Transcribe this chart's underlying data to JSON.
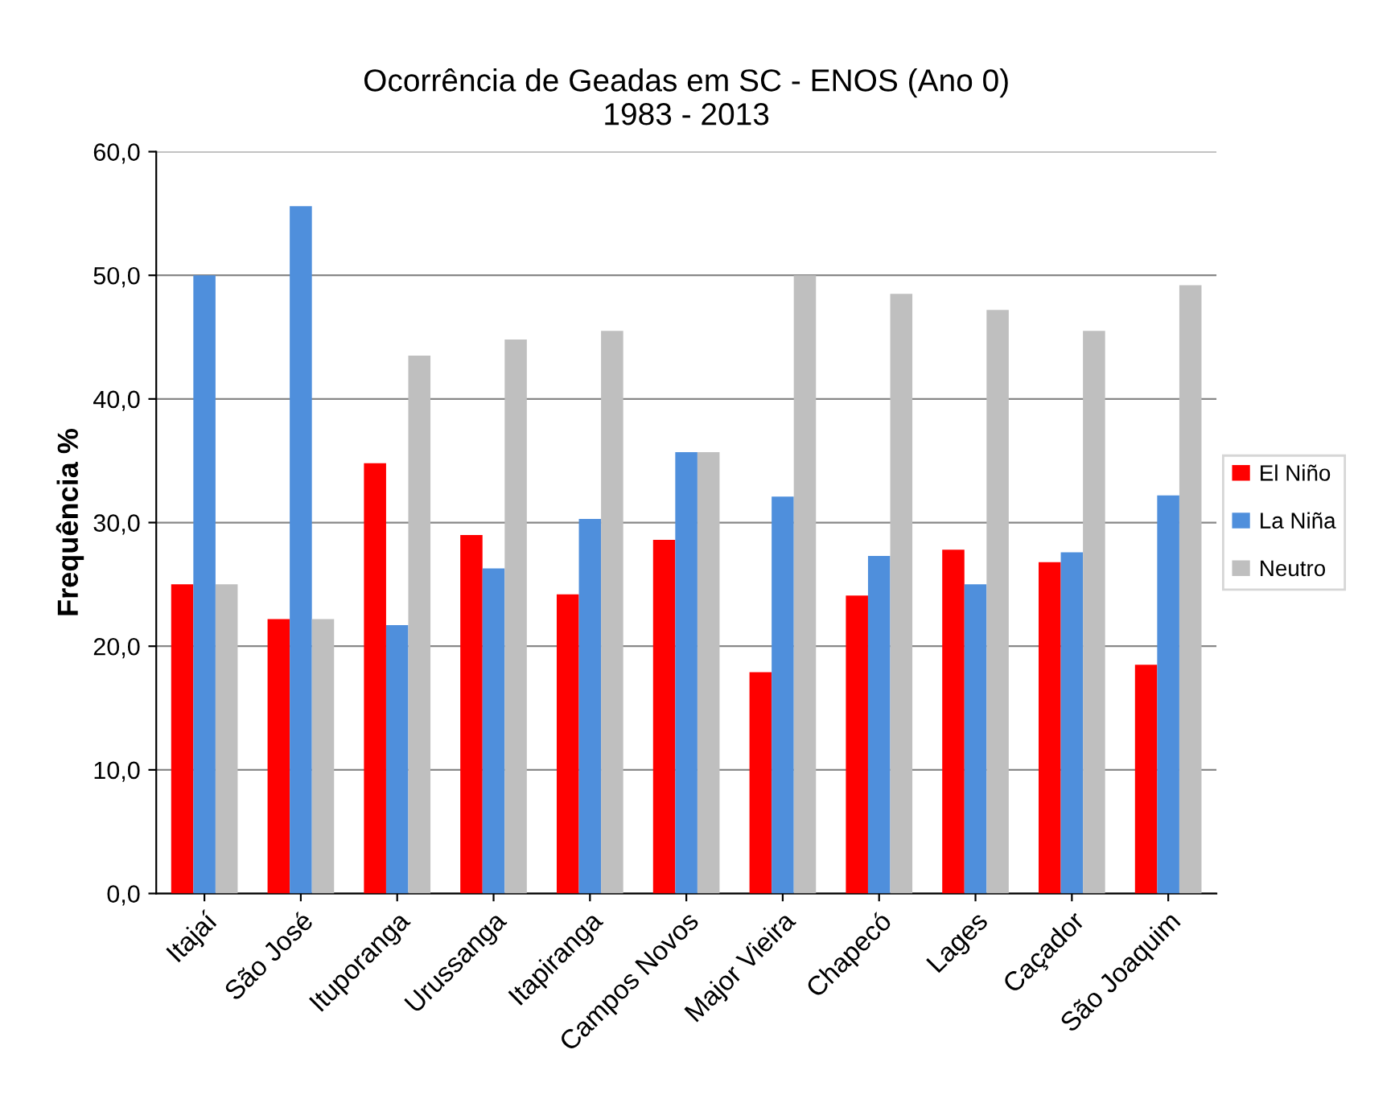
{
  "chart_data": {
    "type": "bar",
    "title": "Ocorrência de Geadas em SC - ENOS (Ano 0)\n1983 - 2013",
    "ylabel": "Frequência %",
    "categories": [
      "Itajaí",
      "São José",
      "Ituporanga",
      "Urussanga",
      "Itapiranga",
      "Campos Novos",
      "Major Vieira",
      "Chapecó",
      "Lages",
      "Caçador",
      "São Joaquim"
    ],
    "series": [
      {
        "name": "El Niño",
        "color": "#ff0000",
        "values": [
          25.0,
          22.2,
          34.8,
          29.0,
          24.2,
          28.6,
          17.9,
          24.1,
          27.8,
          26.8,
          18.5
        ]
      },
      {
        "name": "La Niña",
        "color": "#4f8fdc",
        "values": [
          50.0,
          55.6,
          21.7,
          26.3,
          30.3,
          35.7,
          32.1,
          27.3,
          25.0,
          27.6,
          32.2
        ]
      },
      {
        "name": "Neutro",
        "color": "#bfbfbf",
        "values": [
          25.0,
          22.2,
          43.5,
          44.8,
          45.5,
          35.7,
          50.0,
          48.5,
          47.2,
          45.5,
          49.2
        ]
      }
    ],
    "ylim": [
      0,
      60
    ],
    "yticks": [
      {
        "value": 0,
        "label": "0,0"
      },
      {
        "value": 10,
        "label": "10,0"
      },
      {
        "value": 20,
        "label": "20,0"
      },
      {
        "value": 30,
        "label": "30,0"
      },
      {
        "value": 40,
        "label": "40,0"
      },
      {
        "value": 50,
        "label": "50,0"
      },
      {
        "value": 60,
        "label": "60,0"
      }
    ],
    "grid": "y",
    "legend": "right"
  }
}
